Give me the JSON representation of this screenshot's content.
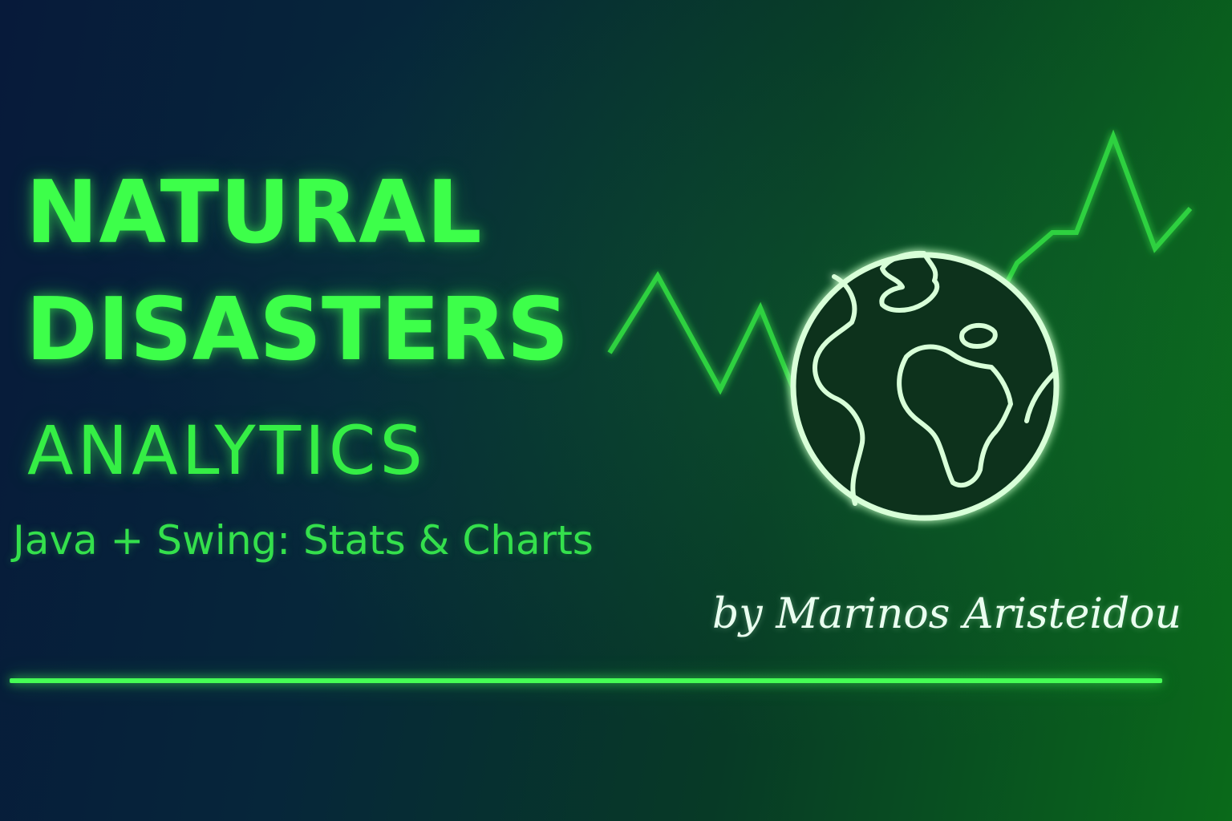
{
  "title": {
    "line1": "NATURAL",
    "line2": "DISASTERS",
    "line3": "ANALYTICS"
  },
  "subtitle": "Java + Swing: Stats & Charts",
  "author": "by Marinos Aristeidou",
  "graphic": {
    "icon": "globe-icon",
    "decoration": "zigzag trend line over grid",
    "accent_color": "#3dff4a",
    "globe_color": "#d8ffd8"
  },
  "colors": {
    "background_start": "#071a3a",
    "background_end": "#0a6a1a",
    "accent": "#3dff4a",
    "signature": "#eafff0"
  }
}
